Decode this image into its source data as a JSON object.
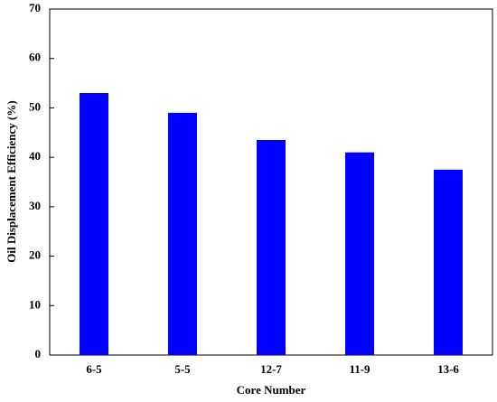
{
  "chart_data": {
    "type": "bar",
    "x_label": "Core Number",
    "y_label": "Oil Displacement Efficiency (%)",
    "categories": [
      "6-5",
      "5-5",
      "12-7",
      "11-9",
      "13-6"
    ],
    "values": [
      53,
      49,
      43.5,
      41,
      37.5
    ],
    "color": "#0000ff",
    "ylim": [
      0,
      70
    ],
    "yticks": [
      0,
      10,
      20,
      30,
      40,
      50,
      60,
      70
    ],
    "grid": false
  }
}
